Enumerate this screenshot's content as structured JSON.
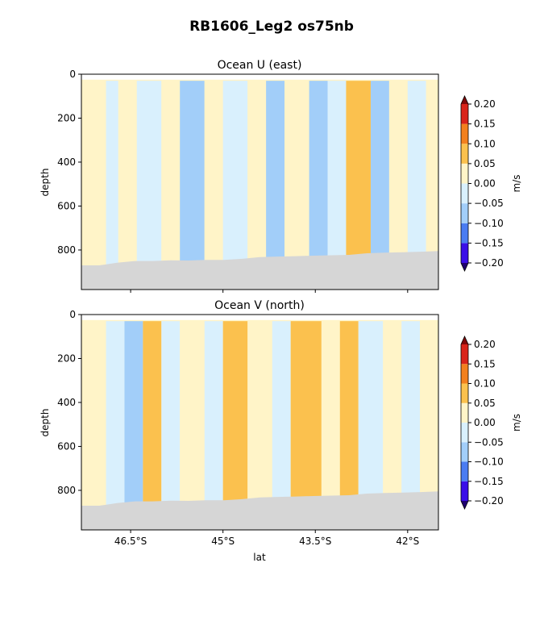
{
  "figure_title": "RB1606_Leg2 os75nb",
  "chart_data": [
    {
      "type": "heatmap",
      "title": "Ocean U (east)",
      "xlabel": "",
      "ylabel": "depth",
      "x_ticks": [],
      "y_ticks": [
        "0",
        "200",
        "400",
        "600",
        "800"
      ],
      "y_tick_values": [
        0,
        200,
        400,
        600,
        800
      ],
      "xlim": [
        47.3,
        41.5
      ],
      "ylim": [
        980,
        0
      ],
      "colorbar": {
        "label": "m/s",
        "ticks": [
          "0.20",
          "0.15",
          "0.10",
          "0.05",
          "0.00",
          "−0.05",
          "−0.10",
          "−0.15",
          "−0.20"
        ],
        "levels": [
          -0.2,
          -0.15,
          -0.1,
          -0.05,
          0.0,
          0.05,
          0.1,
          0.15,
          0.2
        ],
        "colors": [
          "#3a0ee8",
          "#4a7cf2",
          "#a2cef9",
          "#d9f0fd",
          "#fff4c8",
          "#fbc14e",
          "#f2801e",
          "#d9241a"
        ],
        "extend": "both"
      },
      "seafloor_depth": [
        870,
        870,
        858,
        850,
        850,
        847,
        848,
        845,
        845,
        840,
        832,
        830,
        828,
        826,
        824,
        822,
        815,
        812,
        810,
        808,
        805
      ],
      "bins": [
        {
          "lat_start": 47.3,
          "lat_end": 46.9,
          "value": 0.03
        },
        {
          "lat_start": 46.9,
          "lat_end": 46.7,
          "value": -0.03
        },
        {
          "lat_start": 46.7,
          "lat_end": 46.4,
          "value": 0.02
        },
        {
          "lat_start": 46.4,
          "lat_end": 46.0,
          "value": -0.03
        },
        {
          "lat_start": 46.0,
          "lat_end": 45.7,
          "value": 0.04
        },
        {
          "lat_start": 45.7,
          "lat_end": 45.3,
          "value": -0.06
        },
        {
          "lat_start": 45.3,
          "lat_end": 45.0,
          "value": 0.03
        },
        {
          "lat_start": 45.0,
          "lat_end": 44.6,
          "value": -0.04
        },
        {
          "lat_start": 44.6,
          "lat_end": 44.3,
          "value": 0.02
        },
        {
          "lat_start": 44.3,
          "lat_end": 44.0,
          "value": -0.07
        },
        {
          "lat_start": 44.0,
          "lat_end": 43.6,
          "value": 0.03
        },
        {
          "lat_start": 43.6,
          "lat_end": 43.3,
          "value": -0.08
        },
        {
          "lat_start": 43.3,
          "lat_end": 43.0,
          "value": -0.03
        },
        {
          "lat_start": 43.0,
          "lat_end": 42.6,
          "value": 0.06
        },
        {
          "lat_start": 42.6,
          "lat_end": 42.3,
          "value": -0.06
        },
        {
          "lat_start": 42.3,
          "lat_end": 42.0,
          "value": 0.03
        },
        {
          "lat_start": 42.0,
          "lat_end": 41.7,
          "value": -0.04
        },
        {
          "lat_start": 41.7,
          "lat_end": 41.5,
          "value": 0.04
        }
      ]
    },
    {
      "type": "heatmap",
      "title": "Ocean V (north)",
      "xlabel": "lat",
      "ylabel": "depth",
      "x_ticks": [
        "46.5°S",
        "45°S",
        "43.5°S",
        "42°S"
      ],
      "x_tick_values": [
        46.5,
        45.0,
        43.5,
        42.0
      ],
      "y_ticks": [
        "0",
        "200",
        "400",
        "600",
        "800"
      ],
      "y_tick_values": [
        0,
        200,
        400,
        600,
        800
      ],
      "xlim": [
        47.3,
        41.5
      ],
      "ylim": [
        980,
        0
      ],
      "colorbar": {
        "label": "m/s",
        "ticks": [
          "0.20",
          "0.15",
          "0.10",
          "0.05",
          "0.00",
          "−0.05",
          "−0.10",
          "−0.15",
          "−0.20"
        ],
        "levels": [
          -0.2,
          -0.15,
          -0.1,
          -0.05,
          0.0,
          0.05,
          0.1,
          0.15,
          0.2
        ],
        "colors": [
          "#3a0ee8",
          "#4a7cf2",
          "#a2cef9",
          "#d9f0fd",
          "#fff4c8",
          "#fbc14e",
          "#f2801e",
          "#d9241a"
        ],
        "extend": "both"
      },
      "seafloor_depth": [
        870,
        870,
        858,
        850,
        850,
        847,
        848,
        845,
        845,
        840,
        832,
        830,
        828,
        826,
        824,
        822,
        815,
        812,
        810,
        808,
        805
      ],
      "bins": [
        {
          "lat_start": 47.3,
          "lat_end": 46.9,
          "value": 0.02
        },
        {
          "lat_start": 46.9,
          "lat_end": 46.6,
          "value": -0.03
        },
        {
          "lat_start": 46.6,
          "lat_end": 46.3,
          "value": -0.09
        },
        {
          "lat_start": 46.3,
          "lat_end": 46.0,
          "value": 0.06
        },
        {
          "lat_start": 46.0,
          "lat_end": 45.7,
          "value": -0.04
        },
        {
          "lat_start": 45.7,
          "lat_end": 45.3,
          "value": 0.03
        },
        {
          "lat_start": 45.3,
          "lat_end": 45.0,
          "value": -0.04
        },
        {
          "lat_start": 45.0,
          "lat_end": 44.6,
          "value": 0.08
        },
        {
          "lat_start": 44.6,
          "lat_end": 44.2,
          "value": 0.04
        },
        {
          "lat_start": 44.2,
          "lat_end": 43.9,
          "value": -0.03
        },
        {
          "lat_start": 43.9,
          "lat_end": 43.4,
          "value": 0.09
        },
        {
          "lat_start": 43.4,
          "lat_end": 43.1,
          "value": 0.03
        },
        {
          "lat_start": 43.1,
          "lat_end": 42.8,
          "value": 0.06
        },
        {
          "lat_start": 42.8,
          "lat_end": 42.4,
          "value": -0.03
        },
        {
          "lat_start": 42.4,
          "lat_end": 42.1,
          "value": 0.04
        },
        {
          "lat_start": 42.1,
          "lat_end": 41.8,
          "value": -0.03
        },
        {
          "lat_start": 41.8,
          "lat_end": 41.5,
          "value": 0.03
        }
      ]
    }
  ]
}
